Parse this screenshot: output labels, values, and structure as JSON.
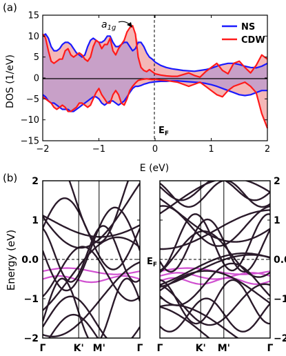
{
  "chart_data": [
    {
      "panel_label": "(a)",
      "type": "line",
      "xlabel": "E (eV)",
      "ylabel": "DOS (1/eV)",
      "xlim": [
        -2,
        2
      ],
      "ylim": [
        -15,
        15
      ],
      "xticks": [
        -2,
        -1,
        0,
        1,
        2
      ],
      "yticks": [
        -15,
        -10,
        -5,
        0,
        5,
        10,
        15
      ],
      "annotations": {
        "peak": "a",
        "peak_sub": "1g",
        "fermi_main": "E",
        "fermi_sub": "F"
      },
      "legend_position": "top-right",
      "series": [
        {
          "name": "NS",
          "color": "#1a1aff",
          "x": [
            -2,
            -1.95,
            -1.9,
            -1.85,
            -1.8,
            -1.75,
            -1.7,
            -1.65,
            -1.6,
            -1.55,
            -1.5,
            -1.45,
            -1.4,
            -1.35,
            -1.3,
            -1.25,
            -1.2,
            -1.15,
            -1.1,
            -1.05,
            -1.0,
            -0.95,
            -0.9,
            -0.85,
            -0.8,
            -0.75,
            -0.7,
            -0.65,
            -0.6,
            -0.55,
            -0.5,
            -0.45,
            -0.4,
            -0.35,
            -0.3,
            -0.25,
            -0.2,
            -0.15,
            -0.1,
            -0.05,
            0.0,
            0.1,
            0.2,
            0.3,
            0.4,
            0.5,
            0.6,
            0.7,
            0.8,
            0.9,
            1.0,
            1.1,
            1.2,
            1.3,
            1.4,
            1.5,
            1.6,
            1.7,
            1.8,
            1.9,
            2.0
          ],
          "up": [
            10,
            10.5,
            9.5,
            7.5,
            6.5,
            6.5,
            7,
            8,
            8.5,
            8.5,
            8,
            7,
            6,
            5.5,
            5,
            5.5,
            7.5,
            9,
            9.5,
            9,
            8.5,
            8.5,
            9,
            10,
            10,
            8.5,
            7.5,
            7.5,
            8,
            8.5,
            8.5,
            7.5,
            6.5,
            7,
            8.5,
            8.5,
            7.5,
            6,
            5,
            4.5,
            3.8,
            3,
            2.5,
            2.2,
            2,
            1.8,
            1.7,
            1.6,
            1.8,
            2,
            2.3,
            2.8,
            3.2,
            3.5,
            3.5,
            3.2,
            2.8,
            2.5,
            2.4,
            2.8,
            3.5
          ],
          "down": [
            -4,
            -4.5,
            -5.5,
            -6,
            -6,
            -6.5,
            -7,
            -7.5,
            -7.5,
            -7.5,
            -8,
            -8,
            -7.5,
            -7,
            -6.5,
            -6,
            -5.5,
            -5,
            -4.5,
            -4.5,
            -5,
            -6,
            -6.5,
            -6,
            -5.5,
            -5.5,
            -6,
            -6.5,
            -6,
            -5.5,
            -4.5,
            -3.5,
            -2.5,
            -2,
            -2,
            -1.8,
            -1.5,
            -1.3,
            -1.1,
            -1.0,
            -0.9,
            -0.8,
            -0.8,
            -0.7,
            -0.7,
            -0.8,
            -0.9,
            -1.0,
            -1.1,
            -1.3,
            -1.6,
            -2,
            -2.5,
            -3,
            -3.5,
            -4,
            -4.2,
            -4,
            -3.5,
            -3,
            -3
          ]
        },
        {
          "name": "CDW",
          "color": "#ff1a1a",
          "x": [
            -2,
            -1.95,
            -1.9,
            -1.85,
            -1.8,
            -1.75,
            -1.7,
            -1.65,
            -1.6,
            -1.55,
            -1.5,
            -1.45,
            -1.4,
            -1.35,
            -1.3,
            -1.25,
            -1.2,
            -1.15,
            -1.1,
            -1.05,
            -1.0,
            -0.95,
            -0.9,
            -0.85,
            -0.8,
            -0.75,
            -0.7,
            -0.65,
            -0.6,
            -0.55,
            -0.5,
            -0.45,
            -0.4,
            -0.35,
            -0.3,
            -0.25,
            -0.2,
            -0.15,
            -0.1,
            -0.05,
            0.0,
            0.1,
            0.2,
            0.3,
            0.4,
            0.5,
            0.6,
            0.7,
            0.8,
            0.9,
            1.0,
            1.1,
            1.2,
            1.3,
            1.4,
            1.5,
            1.6,
            1.7,
            1.8,
            1.9,
            2.0
          ],
          "up": [
            10.5,
            9.5,
            6.5,
            4,
            3.5,
            4,
            4.5,
            4.5,
            6.5,
            7,
            5.5,
            5,
            5.5,
            6,
            5.5,
            4.5,
            4,
            5,
            7.5,
            9,
            8.5,
            7,
            8,
            8,
            9.5,
            6.5,
            5.5,
            7,
            8,
            9,
            11,
            12,
            12.5,
            10.5,
            5,
            2.5,
            1.8,
            1.5,
            2,
            1.5,
            1.0,
            0.7,
            0.5,
            0.4,
            0.4,
            0.8,
            1.2,
            0.6,
            0.2,
            1.5,
            2.5,
            3.5,
            1.8,
            1,
            3.5,
            4,
            2.5,
            1.2,
            3,
            5.5,
            4.5
          ],
          "down": [
            -4.5,
            -5,
            -5.5,
            -6,
            -7,
            -7.5,
            -7,
            -6.5,
            -7,
            -8,
            -8,
            -7.5,
            -7,
            -6,
            -6,
            -6.5,
            -7,
            -6.5,
            -5,
            -3.5,
            -2.5,
            -4,
            -5,
            -6,
            -6,
            -4,
            -3,
            -4,
            -6,
            -6.5,
            -5,
            -3,
            -2,
            -1.2,
            -0.6,
            -0.4,
            -0.3,
            -0.2,
            -0.3,
            -0.4,
            -0.3,
            -0.5,
            -0.6,
            -0.8,
            -1,
            -1.5,
            -2,
            -1.5,
            -1,
            -2,
            -3,
            -4,
            -4.5,
            -3,
            -2,
            -1.5,
            -1,
            -2,
            -3.5,
            -8.5,
            -12
          ]
        }
      ]
    },
    {
      "panel_label": "(b)",
      "type": "line",
      "ylabel": "Energy (eV)",
      "ylim": [
        -2,
        2
      ],
      "yticks": [
        -2,
        -1,
        0,
        1,
        2
      ],
      "kpath": [
        "Γ",
        "K'",
        "M'",
        "Γ"
      ],
      "kpath_positions": [
        0,
        0.37,
        0.58,
        1.0
      ],
      "fermi_label_main": "E",
      "fermi_label_sub": "F"
    }
  ]
}
